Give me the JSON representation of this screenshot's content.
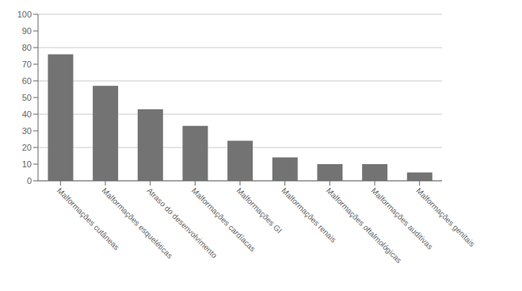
{
  "chart_data": {
    "type": "bar",
    "categories": [
      "Malformações cutâneas",
      "Malformações esqueléticas",
      "Atraso do desenvolvimento",
      "Malformações cardíacas",
      "Malformações GI",
      "Malformações renais",
      "Malformações oftalmológicas",
      "Malformações auditivas",
      "Malformações genitais"
    ],
    "values": [
      76,
      57,
      43,
      33,
      24,
      14,
      10,
      10,
      5
    ],
    "color": "#737373",
    "ylim": [
      0,
      100
    ],
    "yticks": [
      0,
      10,
      20,
      30,
      40,
      50,
      60,
      70,
      80,
      90,
      100
    ],
    "grid": true
  }
}
